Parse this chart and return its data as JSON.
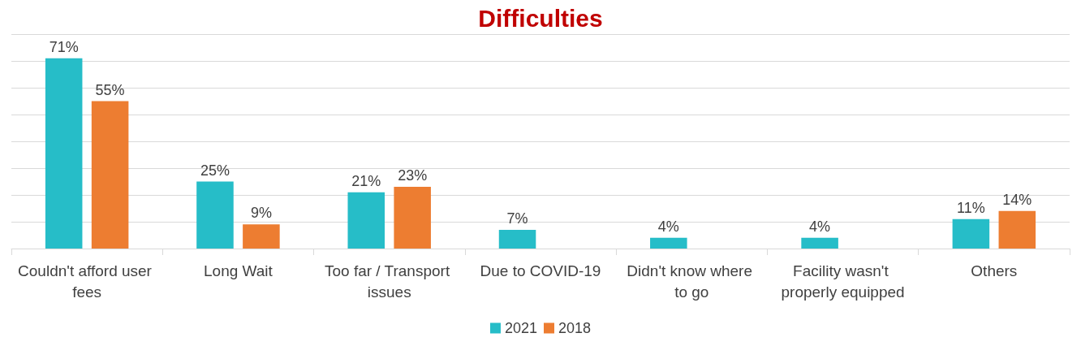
{
  "chart_data": {
    "type": "bar",
    "title": "Difficulties",
    "categories": [
      "Couldn't afford user fees",
      "Long Wait",
      "Too far / Transport issues",
      "Due to COVID-19",
      "Didn't know where to go",
      "Facility wasn't properly equipped",
      "Others"
    ],
    "series": [
      {
        "name": "2021",
        "color": "#26bdc8",
        "values": [
          71,
          25,
          21,
          7,
          4,
          4,
          11
        ],
        "value_labels": [
          "71%",
          "25%",
          "21%",
          "7%",
          "4%",
          "4%",
          "11%"
        ]
      },
      {
        "name": "2018",
        "color": "#ed7d31",
        "values": [
          55,
          9,
          23,
          null,
          null,
          null,
          14
        ],
        "value_labels": [
          "55%",
          "9%",
          "23%",
          null,
          null,
          null,
          "14%"
        ]
      }
    ],
    "ylim": [
      0,
      80
    ],
    "yticks": [
      {
        "value": 0,
        "label": null
      },
      {
        "value": 10,
        "label": null
      },
      {
        "value": 20,
        "label": null
      },
      {
        "value": 30,
        "label": null
      },
      {
        "value": 40,
        "label": null
      },
      {
        "value": 50,
        "label": null
      },
      {
        "value": 60,
        "label": null
      },
      {
        "value": 70,
        "label": null
      },
      {
        "value": 80,
        "label": null
      }
    ],
    "tick_labels": "x",
    "grid": "y",
    "legend": "bottom"
  }
}
